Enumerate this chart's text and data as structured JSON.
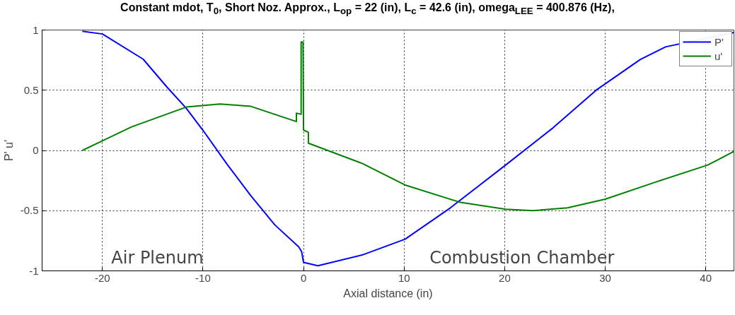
{
  "chart_data": {
    "type": "line",
    "title": "Constant mdot, T$_{0}$, Short Noz. Approx., L$_{op}$ = 22 (in), L$_{c}$ = 42.6 (in), omega$_{LEE}$ = 400.876 (Hz),",
    "xlabel": "Axial distance (in)",
    "ylabel": "P' u'",
    "xlim": [
      -26,
      42.8
    ],
    "ylim": [
      -1,
      1
    ],
    "xticks": [
      -20,
      -10,
      0,
      10,
      20,
      30,
      40
    ],
    "yticks": [
      -1,
      -0.5,
      0,
      0.5,
      1
    ],
    "grid": true,
    "legend": "top right",
    "line_style": "solid",
    "annotations": [
      "Air Plenum",
      "Combustion Chamber"
    ],
    "series": [
      {
        "name": "P'",
        "color": "#0000ff",
        "x": [
          -22,
          -20,
          -15.95,
          -13.57,
          -11.66,
          -10,
          -7.6,
          -5.24,
          -2.86,
          -0.48,
          -0.19,
          0,
          1.43,
          5.87,
          10.1,
          14.6,
          20.1,
          24.8,
          29.2,
          33.5,
          36,
          42.8
        ],
        "values": [
          0.99,
          0.967,
          0.758,
          0.525,
          0.35,
          0.167,
          -0.115,
          -0.376,
          -0.618,
          -0.8,
          -0.84,
          -0.93,
          -0.957,
          -0.867,
          -0.737,
          -0.477,
          -0.121,
          0.187,
          0.507,
          0.756,
          0.86,
          0.98
        ]
      },
      {
        "name": "u'",
        "color": "#008000",
        "x": [
          -22,
          -20,
          -17.1,
          -11.66,
          -8.3,
          -5.24,
          -0.71,
          -0.71,
          -0.24,
          -0.24,
          -0.05,
          0,
          0.48,
          0.48,
          5.87,
          10.1,
          15.5,
          20.1,
          22.8,
          26.25,
          30,
          35,
          40.2,
          42.8
        ],
        "values": [
          0,
          0.08,
          0.196,
          0.36,
          0.386,
          0.366,
          0.24,
          0.31,
          0.3,
          0.9,
          0.9,
          0.17,
          0.15,
          0.06,
          -0.109,
          -0.287,
          -0.429,
          -0.488,
          -0.5,
          -0.477,
          -0.405,
          -0.263,
          -0.121,
          -0.008
        ]
      }
    ]
  }
}
